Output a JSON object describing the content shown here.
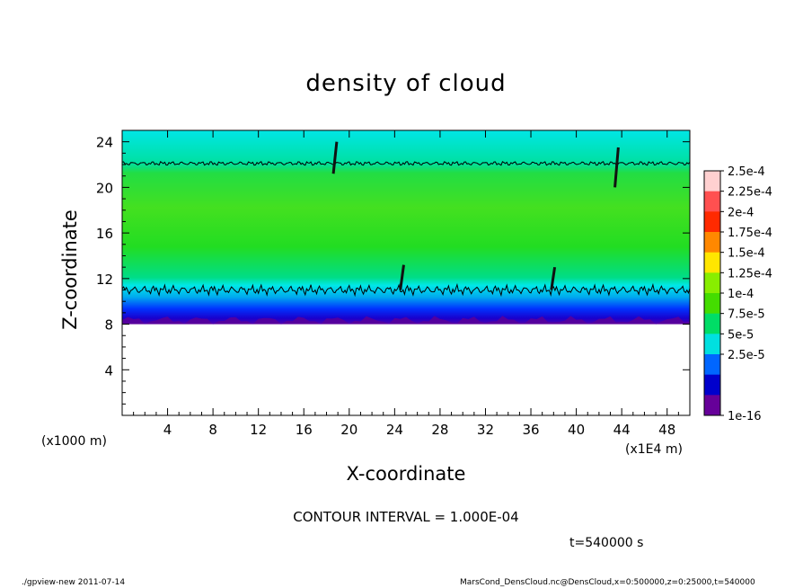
{
  "chart_data": {
    "type": "heatmap",
    "title": "density of cloud",
    "xlabel": "X-coordinate",
    "ylabel": "Z-coordinate",
    "x_unit_left": "(x1000 m)",
    "x_unit_right": "(x1E4 m)",
    "xlim": [
      0,
      50
    ],
    "ylim": [
      0,
      25
    ],
    "x_ticks": [
      "4",
      "8",
      "12",
      "16",
      "20",
      "24",
      "28",
      "32",
      "36",
      "40",
      "44",
      "48"
    ],
    "x_tick_values": [
      4,
      8,
      12,
      16,
      20,
      24,
      28,
      32,
      36,
      40,
      44,
      48
    ],
    "y_ticks": [
      "4",
      "8",
      "12",
      "16",
      "20",
      "24"
    ],
    "y_tick_values": [
      4,
      8,
      12,
      16,
      20,
      24
    ],
    "layers": [
      {
        "z": [
          8.0,
          8.5
        ],
        "level": "1e-16"
      },
      {
        "z": [
          8.5,
          9.3
        ],
        "level": "2.5e-5"
      },
      {
        "z": [
          9.3,
          10.5
        ],
        "level": "5e-5"
      },
      {
        "z": [
          10.5,
          11.5
        ],
        "level": "7.5e-5"
      },
      {
        "z": [
          11.5,
          21.0
        ],
        "level": "1e-4"
      },
      {
        "z": [
          21.0,
          22.2
        ],
        "level": "7.5e-5"
      },
      {
        "z": [
          22.2,
          25.0
        ],
        "level": "7.5e-5"
      }
    ],
    "contour_lines_z": [
      11.0,
      22.1
    ],
    "colorbar": {
      "labels": [
        "2.5e-4",
        "2.25e-4",
        "2e-4",
        "1.75e-4",
        "1.5e-4",
        "1.25e-4",
        "1e-4",
        "7.5e-5",
        "5e-5",
        "2.5e-5",
        "1e-16"
      ],
      "colors": [
        "#ffd0d0",
        "#ff5050",
        "#ff2a00",
        "#ff8800",
        "#ffe600",
        "#88ee00",
        "#44dd00",
        "#00dd66",
        "#00e0e0",
        "#0066ff",
        "#0000cc",
        "#660099"
      ]
    },
    "contour_interval": "CONTOUR INTERVAL = 1.000E-04",
    "time": "t=540000 s"
  },
  "footer": {
    "left": "./gpview-new   2011-07-14",
    "right": "MarsCond_DensCloud.nc@DensCloud,x=0:500000,z=0:25000,t=540000"
  }
}
